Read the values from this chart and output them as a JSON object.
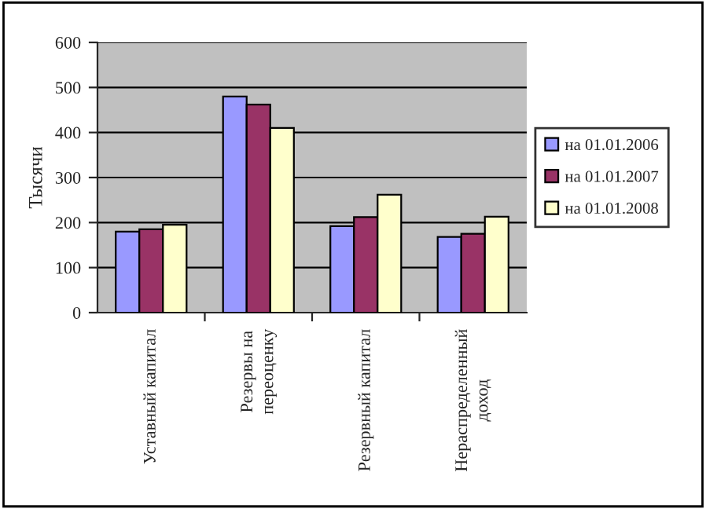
{
  "chart_data": {
    "type": "bar",
    "ylabel": "Тысячи",
    "categories": [
      "Уставный капитал",
      "Резервы на\nпереоценку",
      "Резервный капитал",
      "Нераспределенный\nдоход"
    ],
    "series": [
      {
        "name": "на 01.01.2006",
        "color": "#9999ff",
        "values": [
          180,
          480,
          192,
          168
        ]
      },
      {
        "name": "на 01.01.2007",
        "color": "#993366",
        "values": [
          185,
          462,
          212,
          175
        ]
      },
      {
        "name": "на 01.01.2008",
        "color": "#ffffcc",
        "values": [
          195,
          410,
          262,
          213
        ]
      }
    ],
    "ylim": [
      0,
      600
    ],
    "yticks": [
      0,
      100,
      200,
      300,
      400,
      500,
      600
    ],
    "grid": "y",
    "legend": "right"
  }
}
